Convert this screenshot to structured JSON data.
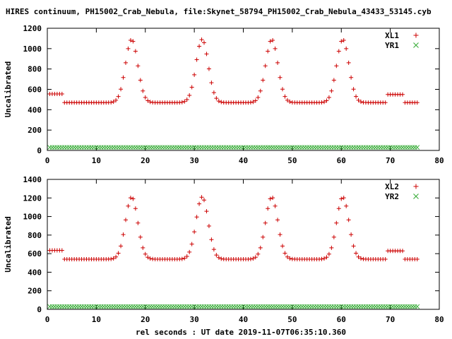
{
  "title": "HIRES continuum, PH15002_Crab_Nebula, file:Skynet_58794_PH15002_Crab_Nebula_43433_53145.cyb",
  "xlabel": "rel seconds : UT date 2019-11-07T06:35:10.360",
  "colors": {
    "red": "#cc0000",
    "green": "#33aa33"
  },
  "chart_data": [
    {
      "type": "scatter",
      "ylabel": "Uncalibrated",
      "xlim": [
        0,
        80
      ],
      "ylim": [
        0,
        1200
      ],
      "xticks": [
        0,
        10,
        20,
        30,
        40,
        50,
        60,
        70,
        80
      ],
      "yticks": [
        0,
        200,
        400,
        600,
        800,
        1000,
        1200
      ],
      "legend_position": "top-right",
      "series": [
        {
          "name": "XL1",
          "color": "#cc0000",
          "marker": "plus",
          "baseline": 470,
          "x_range": [
            0.5,
            75.5
          ],
          "x_step": 0.5,
          "high_segments": [
            [
              0.5,
              3.0,
              555
            ],
            [
              69.5,
              72.5,
              550
            ]
          ],
          "peaks": [
            {
              "x": 17.2,
              "y": 1090
            },
            {
              "x": 31.6,
              "y": 1090
            },
            {
              "x": 45.8,
              "y": 1090
            },
            {
              "x": 60.3,
              "y": 1090
            }
          ],
          "peak_sigma": 1.25
        },
        {
          "name": "YR1",
          "color": "#33aa33",
          "marker": "cross",
          "baseline": 30,
          "x_range": [
            0.5,
            75.5
          ],
          "x_step": 0.5
        }
      ]
    },
    {
      "type": "scatter",
      "ylabel": "Uncalibrated",
      "xlim": [
        0,
        80
      ],
      "ylim": [
        0,
        1400
      ],
      "xticks": [
        0,
        10,
        20,
        30,
        40,
        50,
        60,
        70,
        80
      ],
      "yticks": [
        0,
        200,
        400,
        600,
        800,
        1000,
        1200,
        1400
      ],
      "legend_position": "top-right",
      "series": [
        {
          "name": "XL2",
          "color": "#cc0000",
          "marker": "plus",
          "baseline": 540,
          "x_range": [
            0.5,
            75.5
          ],
          "x_step": 0.5,
          "high_segments": [
            [
              0.5,
              3.0,
              635
            ],
            [
              69.5,
              72.5,
              630
            ]
          ],
          "peaks": [
            {
              "x": 17.2,
              "y": 1210
            },
            {
              "x": 31.6,
              "y": 1210
            },
            {
              "x": 45.8,
              "y": 1210
            },
            {
              "x": 60.3,
              "y": 1210
            }
          ],
          "peak_sigma": 1.25
        },
        {
          "name": "YR2",
          "color": "#33aa33",
          "marker": "cross",
          "baseline": 30,
          "x_range": [
            0.5,
            75.5
          ],
          "x_step": 0.5
        }
      ]
    }
  ]
}
